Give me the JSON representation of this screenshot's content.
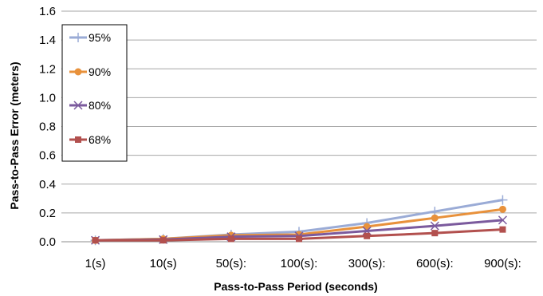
{
  "chart_data": {
    "type": "line",
    "title": "",
    "xlabel": "Pass-to-Pass Period (seconds)",
    "ylabel": "Pass-to-Pass Error (meters)",
    "ylim": [
      0,
      1.6
    ],
    "yticks": [
      "0.0",
      "0.2",
      "0.4",
      "0.6",
      "0.8",
      "1.0",
      "1.2",
      "1.4",
      "1.6"
    ],
    "categories": [
      "1(s)",
      "10(s)",
      "50(s):",
      "100(s):",
      "300(s):",
      "600(s):",
      "900(s):"
    ],
    "grid": true,
    "legend_position": "top-left",
    "series": [
      {
        "name": "95%",
        "color": "#9aabd6",
        "marker": "plus",
        "values": [
          0.01,
          0.02,
          0.05,
          0.07,
          0.13,
          0.21,
          0.29
        ]
      },
      {
        "name": "90%",
        "color": "#e8913b",
        "marker": "circle",
        "values": [
          0.01,
          0.02,
          0.045,
          0.05,
          0.105,
          0.165,
          0.225
        ]
      },
      {
        "name": "80%",
        "color": "#7b5a9d",
        "marker": "x",
        "values": [
          0.01,
          0.015,
          0.035,
          0.04,
          0.075,
          0.11,
          0.15
        ]
      },
      {
        "name": "68%",
        "color": "#b2504e",
        "marker": "square",
        "values": [
          0.01,
          0.01,
          0.02,
          0.02,
          0.04,
          0.06,
          0.085
        ]
      }
    ]
  }
}
